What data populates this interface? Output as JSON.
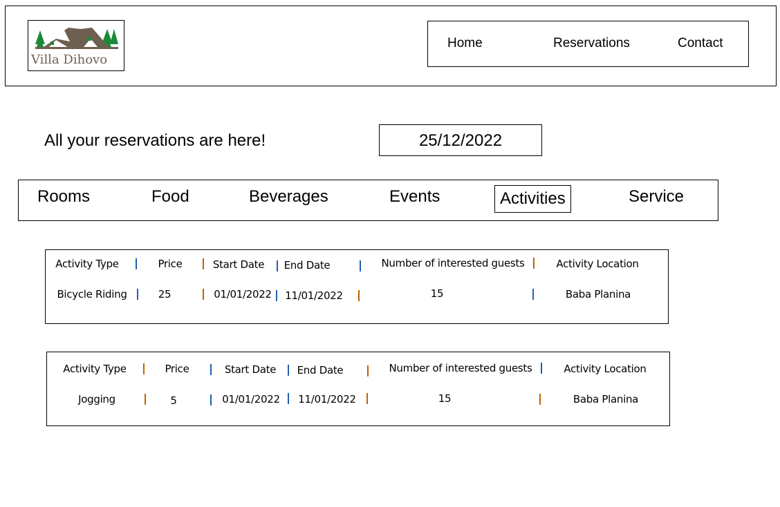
{
  "header": {
    "logo_text": "Villa Dihovo",
    "nav": [
      "Home",
      "Reservations",
      "Contact"
    ]
  },
  "intro": {
    "title": "All your reservations are here!",
    "date": "25/12/2022"
  },
  "tabs": {
    "items": [
      "Rooms",
      "Food",
      "Beverages",
      "Events",
      "Activities",
      "Service"
    ],
    "active": "Activities"
  },
  "columns": [
    "Activity Type",
    "Price",
    "Start Date",
    "End Date",
    "Number of interested guests",
    "Activity Location"
  ],
  "reservations": [
    {
      "type": "Bicycle Riding",
      "price": "25",
      "start": "01/01/2022",
      "end": "11/01/2022",
      "guests": "15",
      "location": "Baba Planina"
    },
    {
      "type": "Jogging",
      "price": "5",
      "start": "01/01/2022",
      "end": "11/01/2022",
      "guests": "15",
      "location": "Baba Planina"
    }
  ],
  "colors": {
    "separator_blue": "#1f5fb0",
    "separator_orange": "#c06000",
    "logo_brown": "#6e6050",
    "logo_green": "#1a8a3a"
  }
}
